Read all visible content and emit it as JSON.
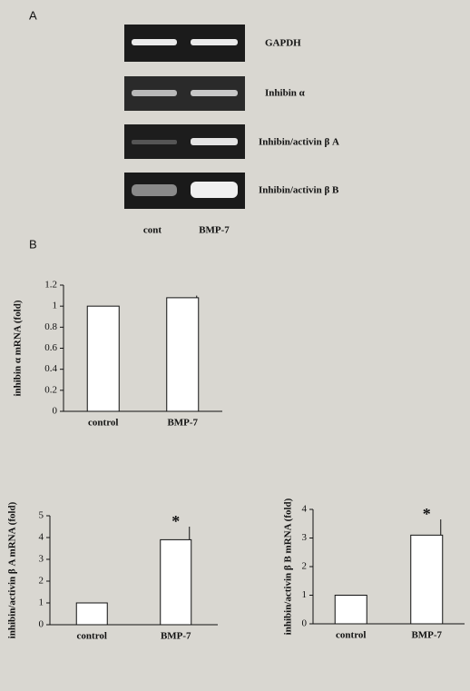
{
  "panels": {
    "a": "A",
    "b": "B"
  },
  "gel": {
    "rows": [
      "GAPDH",
      "Inhibin α",
      "Inhibin/activin β A",
      "Inhibin/activin β B"
    ],
    "lanes": [
      "cont",
      "BMP-7"
    ]
  },
  "chart_data": [
    {
      "type": "bar",
      "ylabel": "inhibin α mRNA (fold)",
      "categories": [
        "control",
        "BMP-7"
      ],
      "values": [
        1,
        1.08
      ],
      "errors": [
        null,
        0.02
      ],
      "color": "#ffffff",
      "ylim": [
        0,
        1.2
      ],
      "yticks": [
        0,
        0.2,
        0.4,
        0.6,
        0.8,
        1,
        1.2
      ]
    },
    {
      "type": "bar",
      "ylabel": "inhibin/activin β A mRNA (fold)",
      "categories": [
        "control",
        "BMP-7"
      ],
      "values": [
        1,
        3.9
      ],
      "errors": [
        null,
        0.6
      ],
      "annotation": "*",
      "color": "#ffffff",
      "ylim": [
        0,
        5
      ],
      "yticks": [
        0,
        1,
        2,
        3,
        4,
        5
      ]
    },
    {
      "type": "bar",
      "ylabel": "inhibin/activin β B mRNA (fold)",
      "categories": [
        "control",
        "BMP-7"
      ],
      "values": [
        1,
        3.1
      ],
      "errors": [
        null,
        0.55
      ],
      "annotation": "*",
      "color": "#ffffff",
      "ylim": [
        0,
        4
      ],
      "yticks": [
        0,
        1,
        2,
        3,
        4
      ]
    }
  ]
}
